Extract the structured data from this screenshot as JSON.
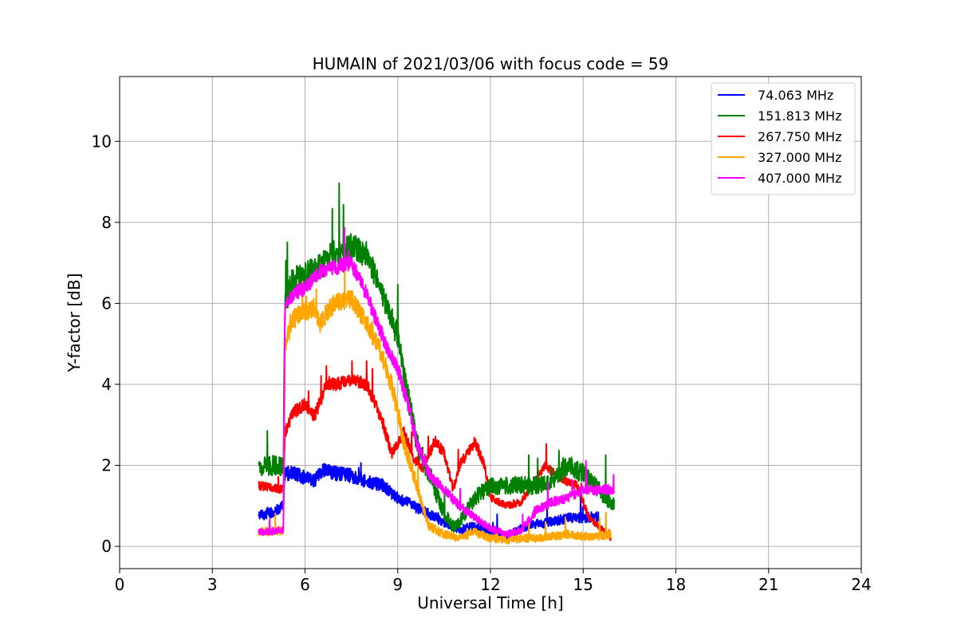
{
  "chart_data": {
    "type": "line",
    "title": "HUMAIN of 2021/03/06 with focus code = 59",
    "xlabel": "Universal Time [h]",
    "ylabel": "Y-factor [dB]",
    "xlim": [
      0,
      24
    ],
    "ylim": [
      -0.55,
      11.6
    ],
    "xticks": [
      0,
      3,
      6,
      9,
      12,
      15,
      18,
      21,
      24
    ],
    "yticks": [
      0,
      2,
      4,
      6,
      8,
      10
    ],
    "grid": true,
    "legend_position": "top-right",
    "series": [
      {
        "name": " 74.063 MHz",
        "color": "#0000ff",
        "noise": 0.15,
        "x": [
          4.5,
          5.0,
          5.2,
          5.3,
          5.35,
          5.6,
          6.0,
          6.3,
          6.6,
          7.0,
          7.5,
          8.0,
          8.5,
          9.0,
          9.5,
          10.0,
          10.5,
          11.0,
          11.5,
          12.0,
          12.5,
          13.0,
          13.5,
          14.0,
          14.5,
          15.0,
          15.5
        ],
        "y": [
          0.75,
          0.85,
          0.95,
          1.0,
          1.8,
          1.8,
          1.7,
          1.6,
          1.9,
          1.8,
          1.75,
          1.6,
          1.5,
          1.2,
          1.0,
          0.8,
          0.6,
          0.4,
          0.5,
          0.4,
          0.25,
          0.45,
          0.55,
          0.6,
          0.7,
          0.7,
          0.75
        ]
      },
      {
        "name": "151.813 MHz",
        "color": "#008000",
        "noise": 0.2,
        "x": [
          4.5,
          5.0,
          5.3,
          5.35,
          5.6,
          6.0,
          6.5,
          7.0,
          7.5,
          8.0,
          8.5,
          9.0,
          9.3,
          9.6,
          10.0,
          10.5,
          10.8,
          11.0,
          11.5,
          12.0,
          12.5,
          13.0,
          13.5,
          14.0,
          14.5,
          15.0,
          15.5,
          16.0
        ],
        "y": [
          1.95,
          2.0,
          2.0,
          6.0,
          6.6,
          6.7,
          6.9,
          7.3,
          7.4,
          7.2,
          6.2,
          5.2,
          3.8,
          2.6,
          1.8,
          0.8,
          0.5,
          0.6,
          1.2,
          1.5,
          1.5,
          1.5,
          1.5,
          1.6,
          2.0,
          1.8,
          1.4,
          1.0
        ]
      },
      {
        "name": "267.750 MHz",
        "color": "#ff0000",
        "noise": 0.1,
        "x": [
          4.5,
          5.0,
          5.3,
          5.35,
          5.6,
          6.0,
          6.3,
          6.5,
          6.7,
          7.0,
          7.5,
          8.0,
          8.5,
          8.8,
          9.0,
          9.2,
          9.5,
          9.8,
          10.2,
          10.5,
          10.8,
          11.0,
          11.5,
          11.8,
          12.0,
          12.5,
          13.0,
          13.5,
          13.8,
          14.2,
          14.5,
          14.8,
          15.2,
          15.5,
          15.9
        ],
        "y": [
          1.5,
          1.45,
          1.4,
          2.8,
          3.3,
          3.5,
          3.2,
          3.6,
          4.0,
          4.0,
          4.1,
          4.0,
          3.1,
          2.3,
          2.5,
          2.8,
          2.2,
          1.9,
          2.6,
          2.3,
          1.4,
          2.0,
          2.6,
          2.0,
          1.2,
          1.0,
          1.1,
          1.7,
          2.0,
          1.7,
          1.6,
          1.5,
          0.7,
          0.5,
          0.2
        ]
      },
      {
        "name": "327.000 MHz",
        "color": "#ffa500",
        "noise": 0.15,
        "x": [
          4.5,
          5.0,
          5.3,
          5.35,
          5.6,
          6.0,
          6.3,
          6.5,
          6.8,
          7.0,
          7.5,
          8.0,
          8.2,
          8.5,
          8.8,
          9.0,
          9.2,
          9.5,
          9.8,
          10.0,
          10.5,
          11.0,
          11.5,
          12.0,
          12.5,
          13.0,
          13.5,
          14.0,
          14.5,
          15.0,
          15.5,
          15.9
        ],
        "y": [
          0.35,
          0.38,
          0.4,
          5.0,
          5.6,
          5.8,
          5.9,
          5.5,
          5.9,
          6.0,
          6.1,
          5.5,
          5.2,
          4.7,
          4.0,
          3.3,
          2.5,
          1.8,
          1.0,
          0.5,
          0.3,
          0.2,
          0.35,
          0.2,
          0.15,
          0.2,
          0.2,
          0.25,
          0.3,
          0.25,
          0.25,
          0.3
        ]
      },
      {
        "name": "407.000 MHz",
        "color": "#ff00ff",
        "noise": 0.12,
        "x": [
          4.5,
          5.0,
          5.3,
          5.35,
          5.6,
          6.0,
          6.5,
          7.0,
          7.5,
          8.0,
          8.3,
          8.6,
          9.0,
          9.3,
          9.6,
          10.0,
          10.5,
          11.0,
          11.5,
          12.0,
          12.5,
          13.0,
          13.5,
          14.0,
          14.5,
          15.0,
          15.5,
          16.0
        ],
        "y": [
          0.35,
          0.38,
          0.4,
          6.0,
          6.2,
          6.4,
          6.8,
          6.9,
          7.0,
          6.2,
          5.6,
          5.0,
          4.4,
          3.6,
          2.6,
          1.8,
          1.4,
          1.0,
          0.7,
          0.45,
          0.3,
          0.4,
          0.9,
          1.1,
          1.2,
          1.4,
          1.4,
          1.4
        ]
      }
    ]
  }
}
